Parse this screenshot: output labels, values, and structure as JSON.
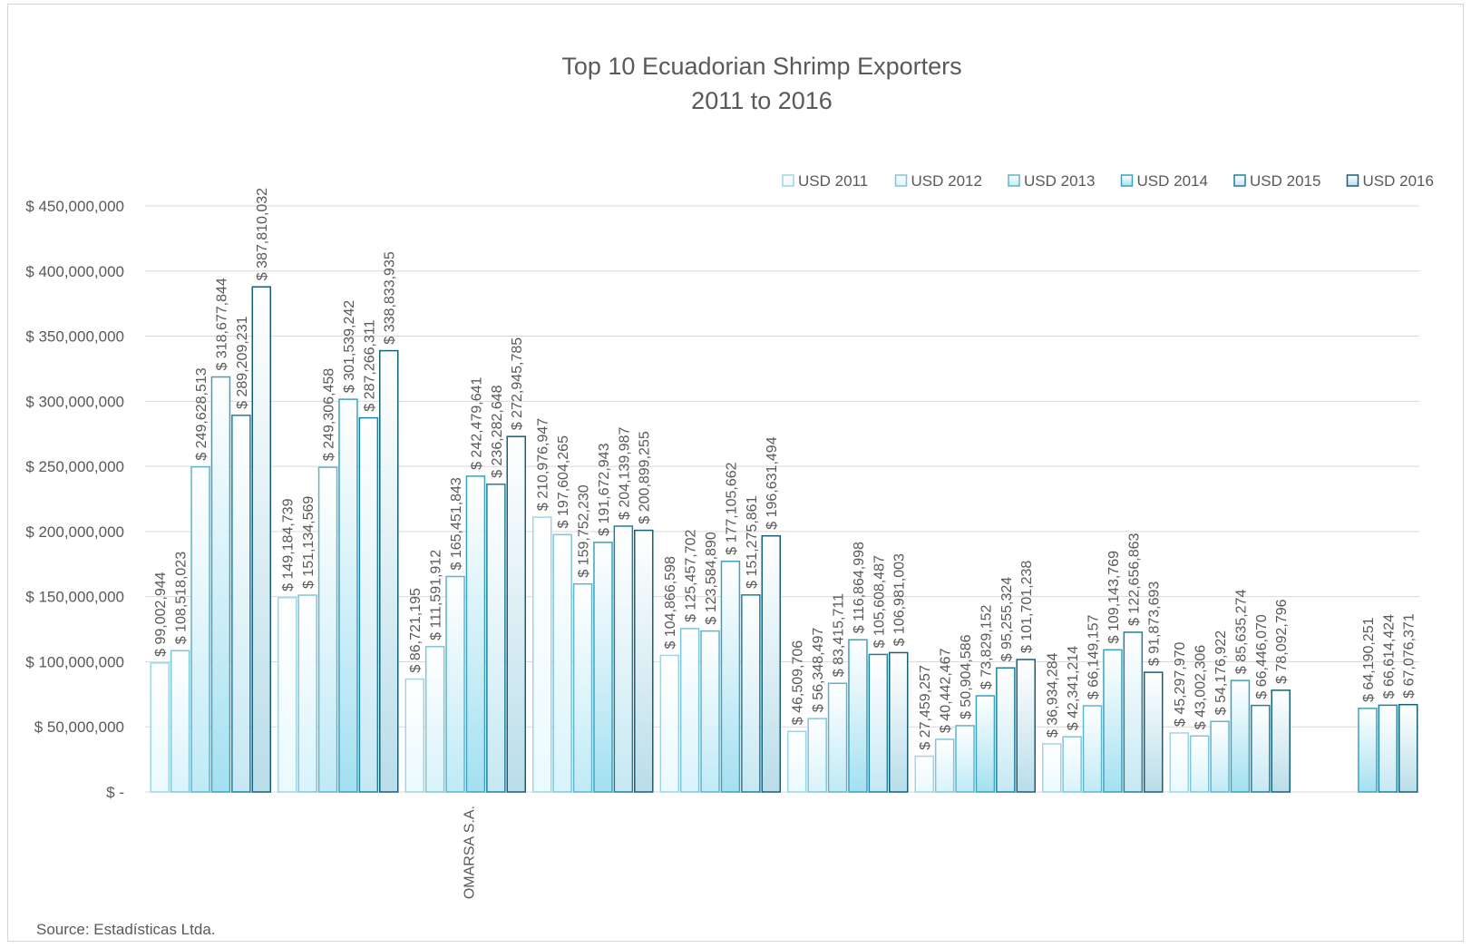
{
  "chart_data": {
    "type": "bar",
    "title": "Top 10 Ecuadorian Shrimp Exporters",
    "subtitle": "2011 to 2016",
    "xlabel": "",
    "ylabel": "",
    "ylim": [
      0,
      450000000
    ],
    "y_ticks": [
      0,
      50000000,
      100000000,
      150000000,
      200000000,
      250000000,
      300000000,
      350000000,
      400000000,
      450000000
    ],
    "y_tick_labels": [
      "$ -",
      "$ 50,000,000",
      "$ 100,000,000",
      "$ 150,000,000",
      "$ 200,000,000",
      "$ 250,000,000",
      "$ 300,000,000",
      "$ 350,000,000",
      "$ 400,000,000",
      "$ 450,000,000"
    ],
    "grid": true,
    "legend_position": "top-right",
    "categories": [
      "",
      "",
      "OMARSA S.A.",
      "",
      "",
      "",
      "",
      "",
      "",
      ""
    ],
    "series": [
      {
        "name": "USD 2011",
        "color": "#eafaff",
        "stroke": "#9fd4e4",
        "values": [
          99002944,
          149184739,
          86721195,
          210976947,
          104866598,
          46509706,
          27459257,
          36934284,
          45297970,
          null
        ],
        "labels": [
          "$ 99,002,944",
          "$ 149,184,739",
          "$ 86,721,195",
          "$ 210,976,947",
          "$ 104,866,598",
          "$ 46,509,706",
          "$ 27,459,257",
          "$ 36,934,284",
          "$ 45,297,970",
          ""
        ]
      },
      {
        "name": "USD 2012",
        "color": "#d8f3fb",
        "stroke": "#7fc5da",
        "values": [
          108518023,
          151134569,
          111591912,
          197604265,
          125457702,
          56348497,
          40442467,
          42341214,
          43002306,
          null
        ],
        "labels": [
          "$ 108,518,023",
          "$ 151,134,569",
          "$ 111,591,912",
          "$ 197,604,265",
          "$ 125,457,702",
          "$ 56,348,497",
          "$ 40,442,467",
          "$ 42,341,214",
          "$ 43,002,306",
          ""
        ]
      },
      {
        "name": "USD 2013",
        "color": "#bfeaf6",
        "stroke": "#5eb4cc",
        "values": [
          249628513,
          249306458,
          165451843,
          159752230,
          123584890,
          83415711,
          50904586,
          66149157,
          54176922,
          null
        ],
        "labels": [
          "$ 249,628,513",
          "$ 249,306,458",
          "$ 165,451,843",
          "$ 159,752,230",
          "$ 123,584,890",
          "$ 83,415,711",
          "$ 50,904,586",
          "$ 66,149,157",
          "$ 54,176,922",
          ""
        ]
      },
      {
        "name": "USD 2014",
        "color": "#a3e0f1",
        "stroke": "#3aa2bd",
        "values": [
          318677844,
          301539242,
          242479641,
          191672943,
          177105662,
          116864998,
          73829152,
          109143769,
          85635274,
          64190251
        ],
        "labels": [
          "$ 318,677,844",
          "$ 301,539,242",
          "$ 242,479,641",
          "$ 191,672,943",
          "$ 177,105,662",
          "$ 116,864,998",
          "$ 73,829,152",
          "$ 109,143,769",
          "$ 85,635,274",
          "$ 64,190,251"
        ]
      },
      {
        "name": "USD 2015",
        "color": "#c6e8f3",
        "stroke": "#1f7f9e",
        "values": [
          289209231,
          287266311,
          236282648,
          204139987,
          151275861,
          105608487,
          95255324,
          122656863,
          66446070,
          66614424
        ],
        "labels": [
          "$ 289,209,231",
          "$ 287,266,311",
          "$ 236,282,648",
          "$ 204,139,987",
          "$ 151,275,861",
          "$ 105,608,487",
          "$ 95,255,324",
          "$ 122,656,863",
          "$ 66,446,070",
          "$ 66,614,424"
        ]
      },
      {
        "name": "USD 2016",
        "color": "#b9dde9",
        "stroke": "#165f7a",
        "values": [
          387810032,
          338833935,
          272945785,
          200899255,
          196631494,
          106981003,
          101701238,
          91873693,
          78092796,
          67076371
        ],
        "labels": [
          "$ 387,810,032",
          "$ 338,833,935",
          "$ 272,945,785",
          "$ 200,899,255",
          "$ 196,631,494",
          "$ 106,981,003",
          "$ 101,701,238",
          "$ 91,873,693",
          "$ 78,092,796",
          "$ 67,076,371"
        ]
      }
    ],
    "source": "Source: Estadísticas Ltda."
  }
}
